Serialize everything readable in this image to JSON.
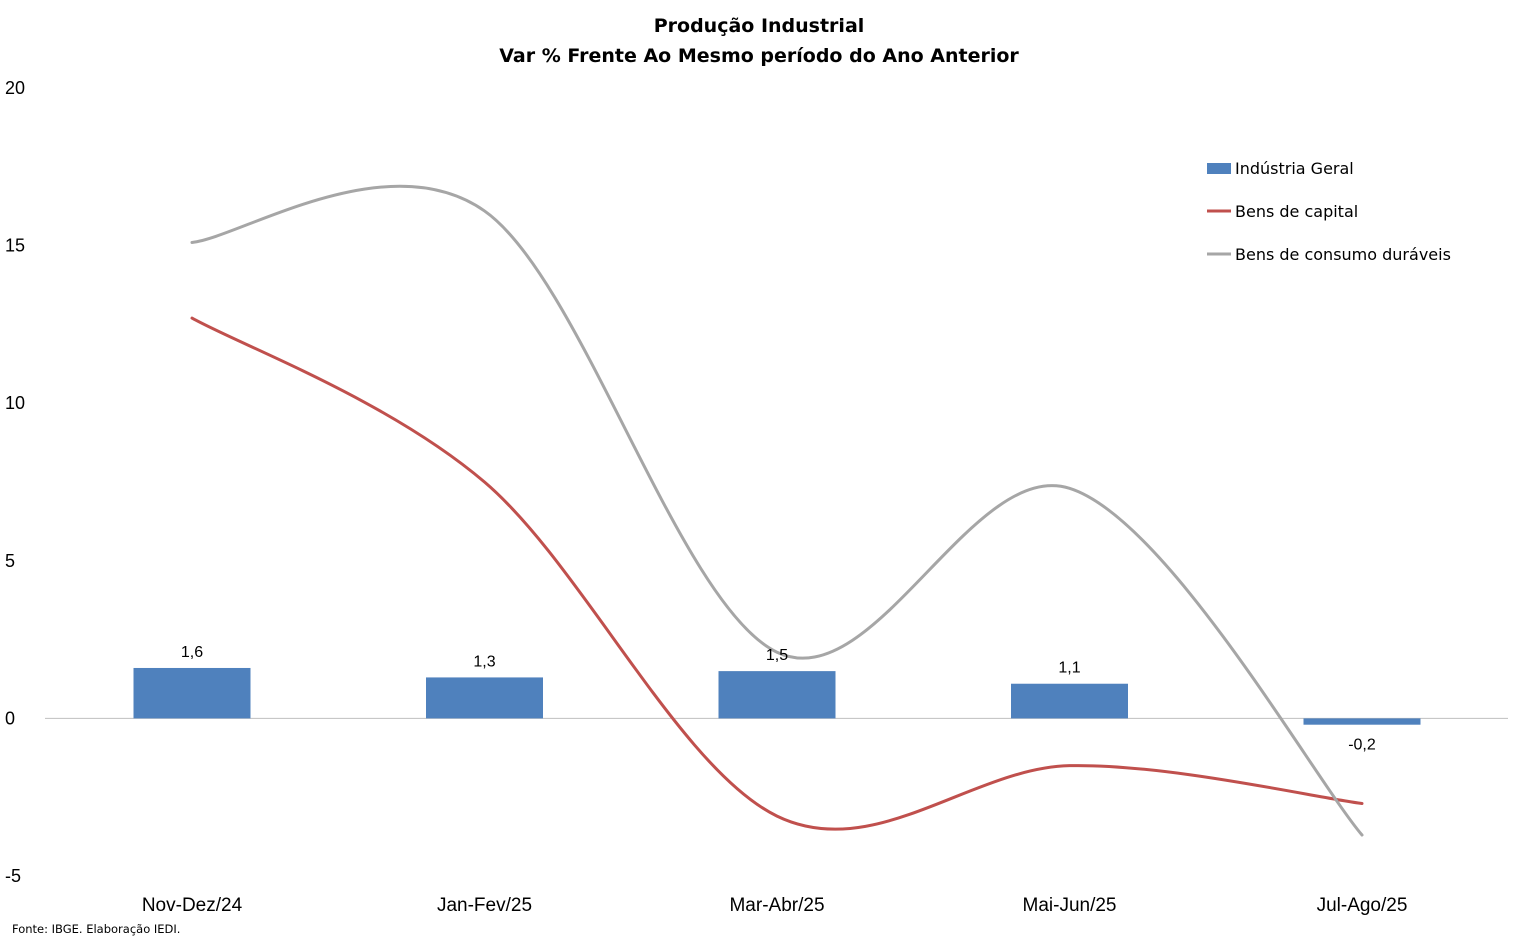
{
  "chart_data": {
    "type": "bar",
    "title": "Produção Industrial",
    "subtitle": "Var % Frente Ao Mesmo período do Ano Anterior",
    "categories": [
      "Nov-Dez/24",
      "Jan-Fev/25",
      "Mar-Abr/25",
      "Mai-Jun/25",
      "Jul-Ago/25"
    ],
    "ylim": [
      -5,
      20
    ],
    "yticks": [
      20,
      15,
      10,
      5,
      0,
      -5
    ],
    "grid": false,
    "legend_position": "top-right",
    "series": [
      {
        "name": "Indústria Geral",
        "kind": "bar",
        "color": "#4F81BD",
        "values": [
          1.6,
          1.3,
          1.5,
          1.1,
          -0.2
        ],
        "data_labels": [
          "1,6",
          "1,3",
          "1,5",
          "1,1",
          "-0,2"
        ]
      },
      {
        "name": "Bens de capital",
        "kind": "line",
        "smooth": true,
        "color": "#C0504D",
        "values": [
          12.7,
          7.5,
          -3.1,
          -1.5,
          -2.7
        ]
      },
      {
        "name": "Bens de consumo duráveis",
        "kind": "line",
        "smooth": true,
        "color": "#A6A6A6",
        "values": [
          15.1,
          16.1,
          2.1,
          7.3,
          -3.7
        ]
      }
    ]
  },
  "source": "Fonte: IBGE. Elaboração IEDI."
}
